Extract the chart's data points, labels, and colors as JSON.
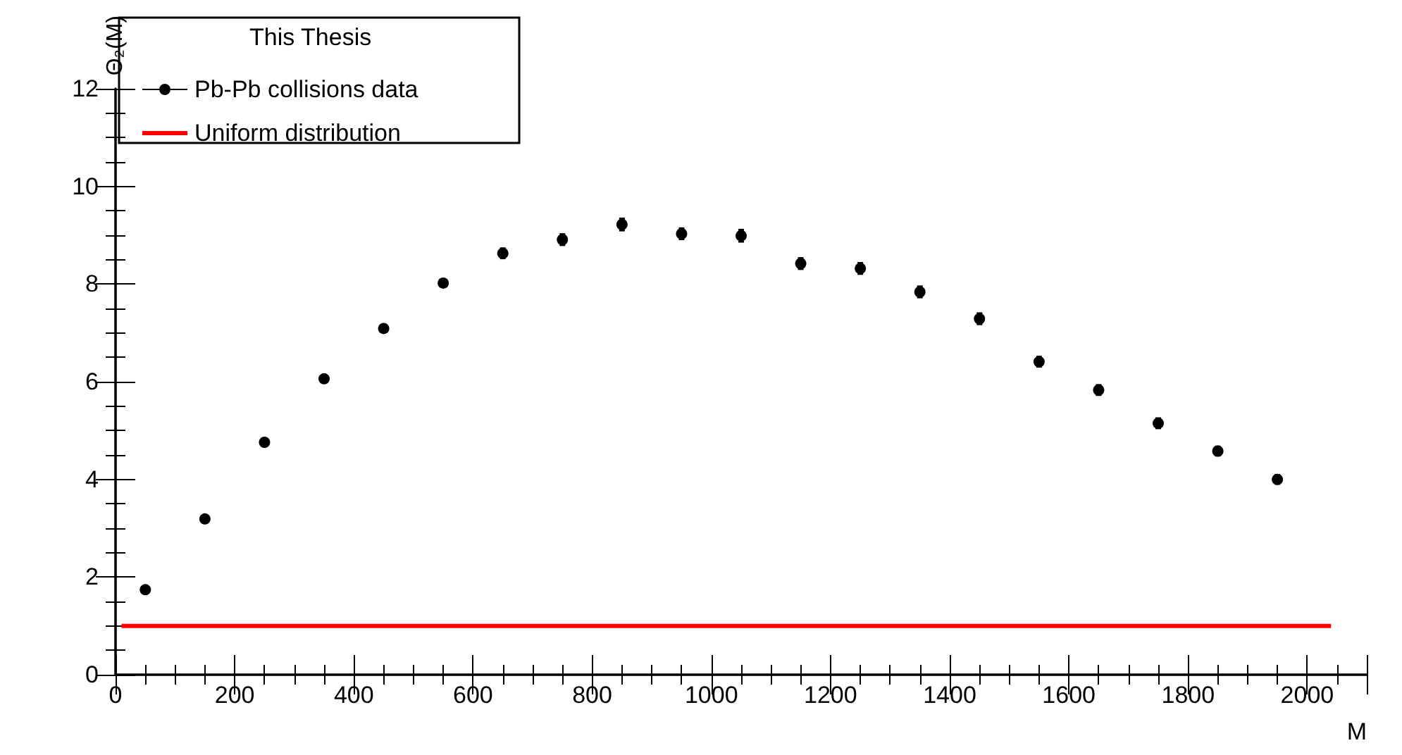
{
  "chart_data": {
    "type": "scatter",
    "xlabel": "M",
    "ylabel": "Θ₂(M)",
    "legend_title": "This Thesis",
    "legend": "top left",
    "xlim": [
      0,
      2100
    ],
    "xticks": [
      0,
      200,
      400,
      600,
      800,
      1000,
      1200,
      1400,
      1600,
      1800,
      2000
    ],
    "ylim": [
      0,
      12
    ],
    "yticks": [
      0,
      2,
      4,
      6,
      8,
      10,
      12
    ],
    "grid": false,
    "series": [
      {
        "name": "Pb-Pb collisions data",
        "marker": "circle",
        "color": "#000000",
        "x": [
          50,
          150,
          250,
          350,
          450,
          550,
          650,
          750,
          850,
          950,
          1050,
          1150,
          1250,
          1350,
          1450,
          1550,
          1650,
          1750,
          1850,
          1950
        ],
        "values": [
          1.74,
          3.19,
          4.76,
          6.06,
          7.09,
          8.02,
          8.63,
          8.91,
          9.22,
          9.03,
          8.99,
          8.42,
          8.32,
          7.84,
          7.29,
          6.41,
          5.83,
          5.15,
          4.58,
          4.0
        ],
        "errors": [
          0.03,
          0.04,
          0.05,
          0.05,
          0.06,
          0.07,
          0.1,
          0.11,
          0.12,
          0.11,
          0.12,
          0.11,
          0.11,
          0.11,
          0.11,
          0.1,
          0.1,
          0.1,
          0.09,
          0.09
        ]
      },
      {
        "name": "Uniform distribution",
        "type": "line",
        "color": "#ff0000",
        "x": [
          10,
          2040
        ],
        "values": [
          1,
          1
        ]
      }
    ]
  }
}
